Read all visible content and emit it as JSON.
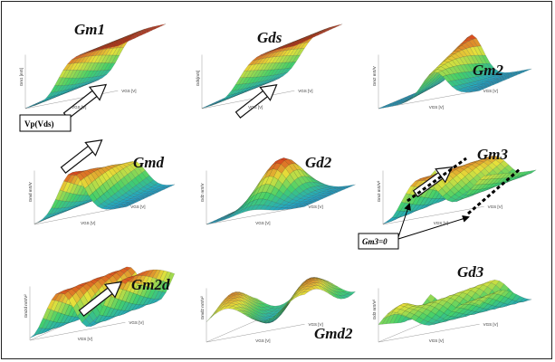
{
  "panels": [
    {
      "title": "Gm1",
      "zlabel": "Gm1 [mS]",
      "xlabel": "VGS [V]",
      "ylabel": "VGS [V]"
    },
    {
      "title": "Gds",
      "zlabel": "Gds[mS]",
      "xlabel": "VGS [V]",
      "ylabel": "VGS [V]"
    },
    {
      "title": "Gm2",
      "zlabel": "Gm2 mS/V",
      "xlabel": "VGS [V]",
      "ylabel": "VGS [V]"
    },
    {
      "title": "Gmd",
      "zlabel": "Gmd mS/V",
      "xlabel": "VGS [V]",
      "ylabel": "VGS [V]"
    },
    {
      "title": "Gd2",
      "zlabel": "Gd2 mS/V",
      "xlabel": "VGS [V]",
      "ylabel": "VGS [V]"
    },
    {
      "title": "Gm3",
      "zlabel": "Gm3 mS/V²",
      "xlabel": "VGS [V]",
      "ylabel": "VGS [V]"
    },
    {
      "title": "Gm2d",
      "zlabel": "Gm2d mS/V²",
      "xlabel": "VGS [V]",
      "ylabel": "VGS [V]"
    },
    {
      "title": "Gmd2",
      "zlabel": "Gmd2 mS/V²",
      "xlabel": "VGS [V]",
      "ylabel": "VGS [V]"
    },
    {
      "title": "Gd3",
      "zlabel": "Gd3 mS/V²",
      "xlabel": "VGS [V]",
      "ylabel": "VGS [V]"
    }
  ],
  "callouts": {
    "vp": "Vp(Vds)",
    "gm3zero": "Gm3=0"
  },
  "colors": {
    "low": "#1f9fcf",
    "mid": "#44d06a",
    "high": "#e6e13a",
    "peak": "#d8321a",
    "mesh": "#2a3a2a"
  }
}
